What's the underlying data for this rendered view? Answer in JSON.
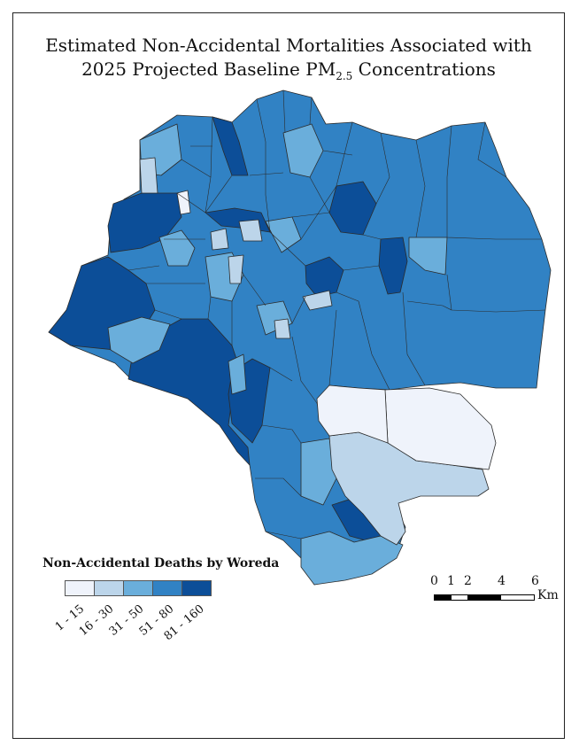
{
  "title": {
    "line1": "Estimated Non-Accidental Mortalities Associated with",
    "line2_prefix": "2025 Projected Baseline PM",
    "line2_sub": "2.5",
    "line2_suffix": " Concentrations"
  },
  "legend": {
    "title": "Non-Accidental Deaths by Woreda",
    "classes": [
      {
        "label": "1 - 15",
        "color": "#eff3fb"
      },
      {
        "label": "16 - 30",
        "color": "#bcd5ea"
      },
      {
        "label": "31 - 50",
        "color": "#6aaedb"
      },
      {
        "label": "51 - 80",
        "color": "#3182c4"
      },
      {
        "label": "81 - 160",
        "color": "#0c4e98"
      }
    ]
  },
  "scale_bar": {
    "ticks": [
      "0",
      "1",
      "2",
      "4",
      "6"
    ],
    "unit": "Km"
  },
  "colors": {
    "boundary": "#2b2b2b",
    "frame": "#222222"
  }
}
